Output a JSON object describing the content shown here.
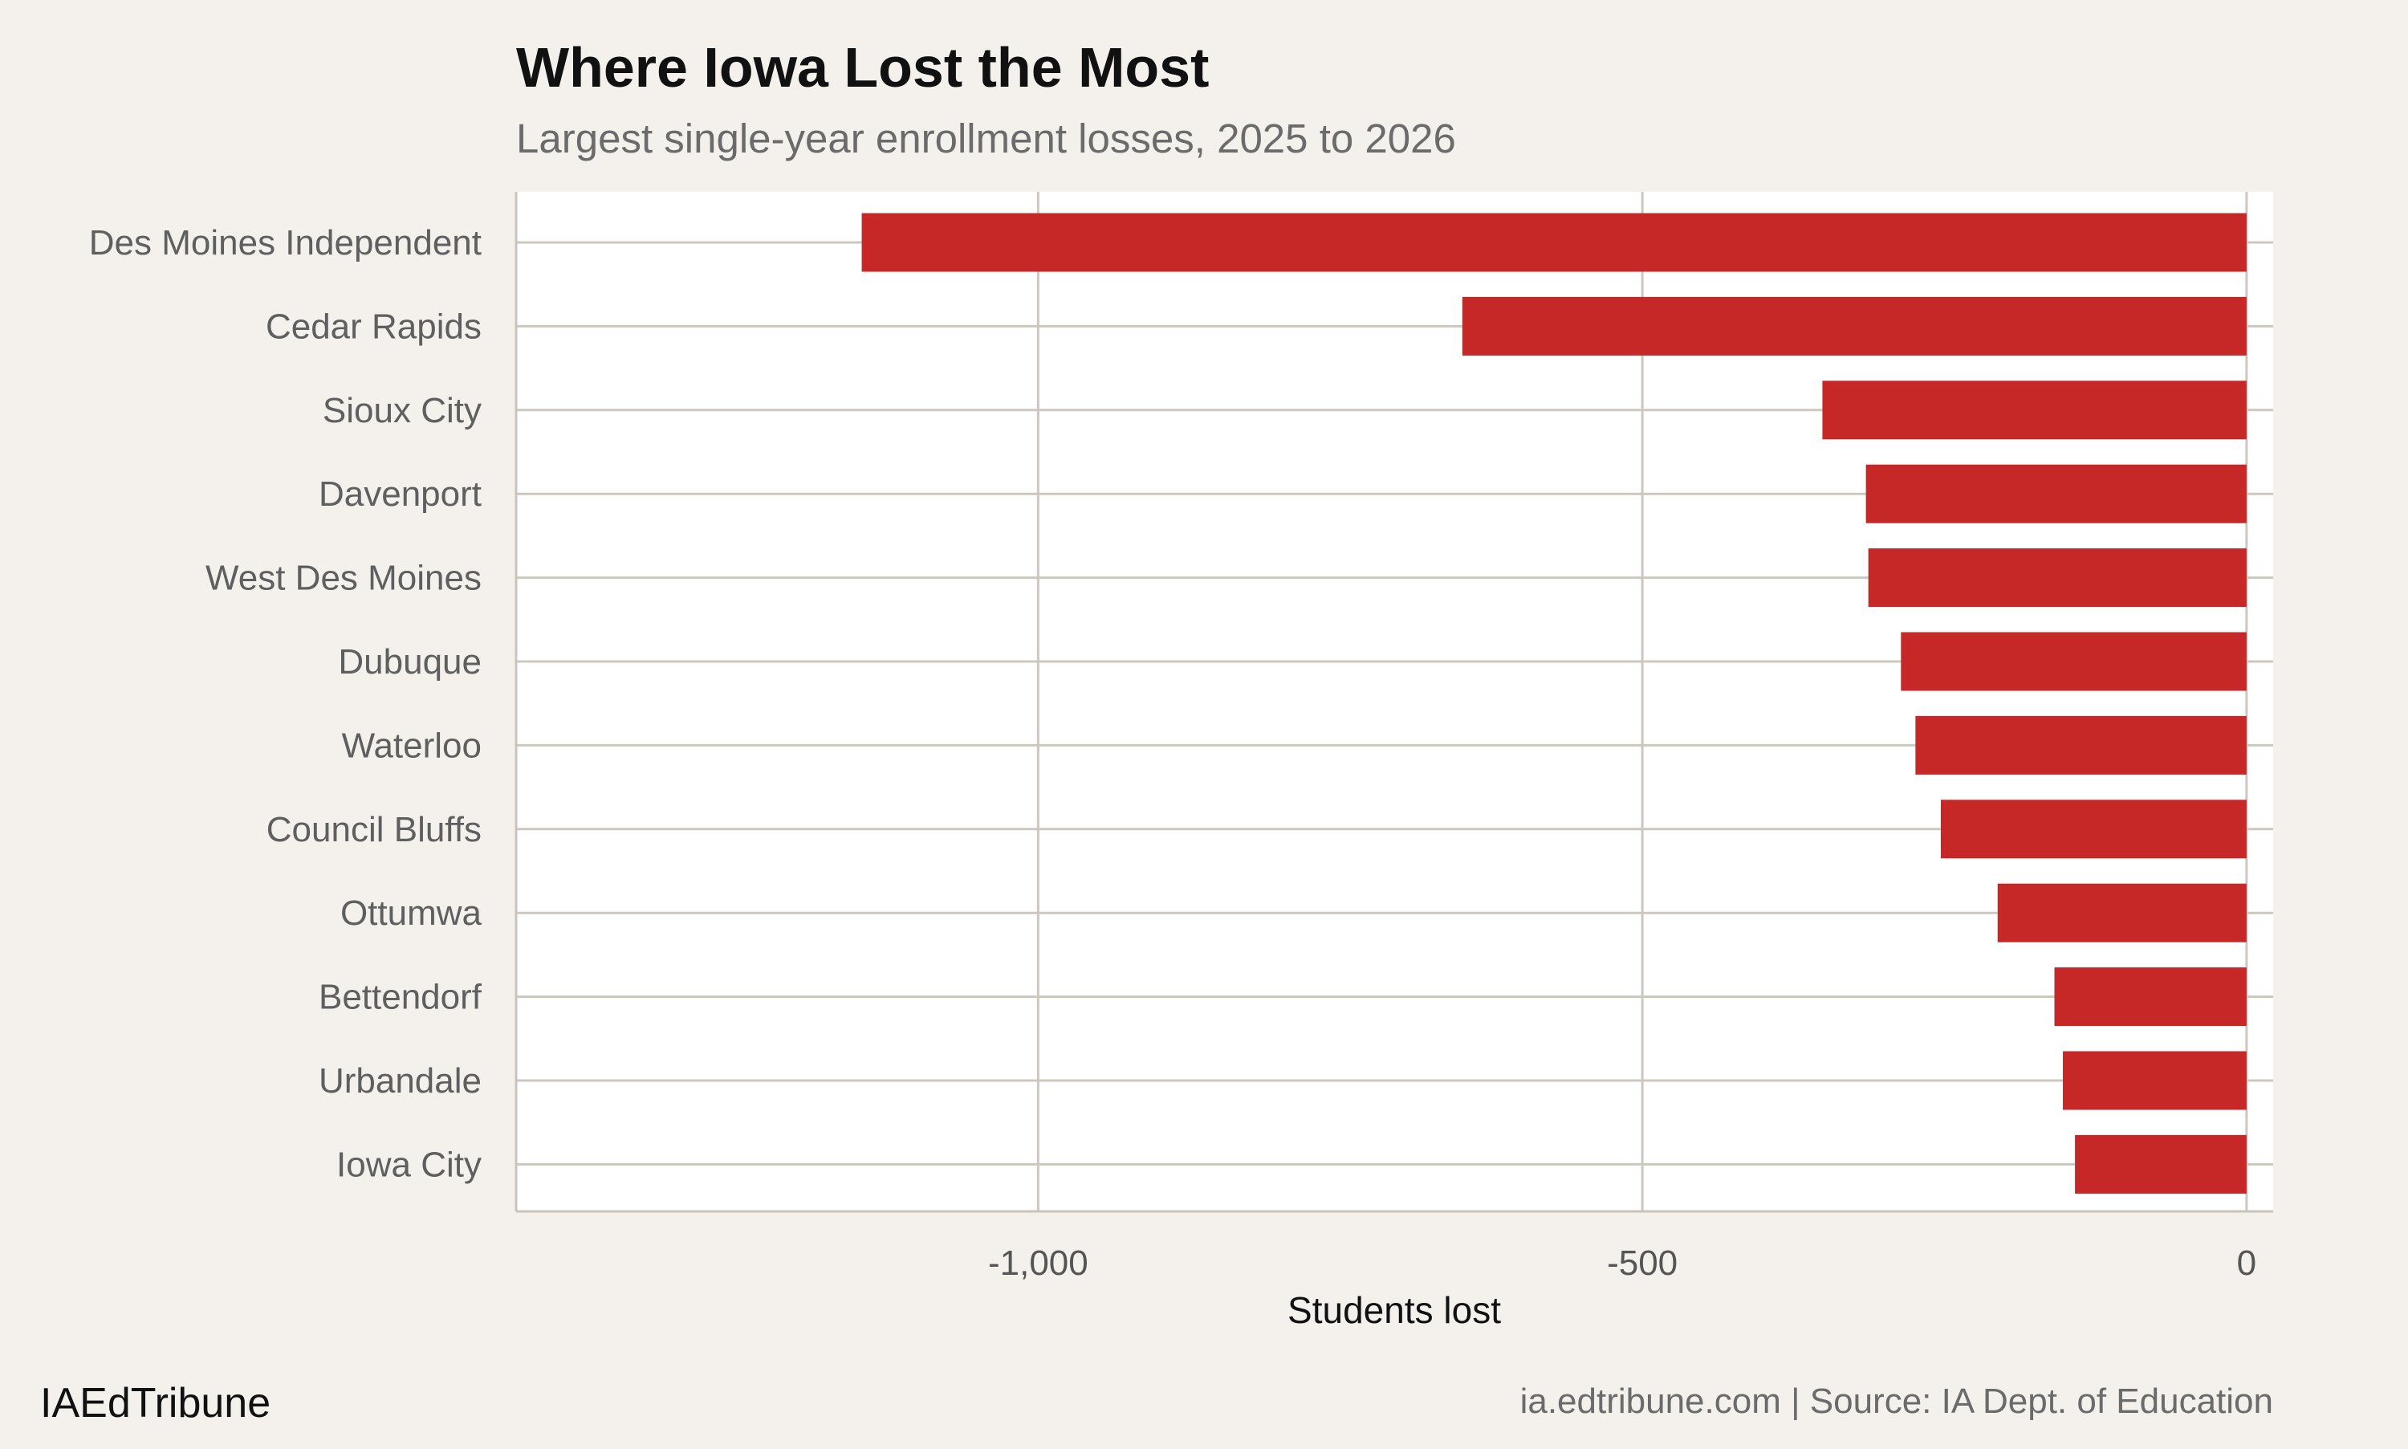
{
  "chart_data": {
    "type": "bar",
    "orientation": "horizontal",
    "title": "Where Iowa Lost the Most",
    "subtitle": "Largest single-year enrollment losses, 2025 to 2026",
    "xlabel": "Students lost",
    "ylabel": "",
    "categories": [
      "Des Moines Independent",
      "Cedar Rapids",
      "Sioux City",
      "Davenport",
      "West Des Moines",
      "Dubuque",
      "Waterloo",
      "Council Bluffs",
      "Ottumwa",
      "Bettendorf",
      "Urbandale",
      "Iowa City"
    ],
    "values": [
      -1146,
      -649,
      -351,
      -315,
      -313,
      -286,
      -274,
      -253,
      -206,
      -159,
      -152,
      -142
    ],
    "xlim": [
      -1432,
      22
    ],
    "xticks": [
      -1000,
      -500,
      0
    ],
    "xtick_labels": [
      "-1,000",
      "-500",
      "0"
    ],
    "grid": true,
    "bar_color": "#c62828",
    "background_color": "#f4f1ec",
    "panel_color": "#ffffff"
  },
  "footer": {
    "brand": "IAEdTribune",
    "source": "ia.edtribune.com | Source: IA Dept. of Education"
  }
}
